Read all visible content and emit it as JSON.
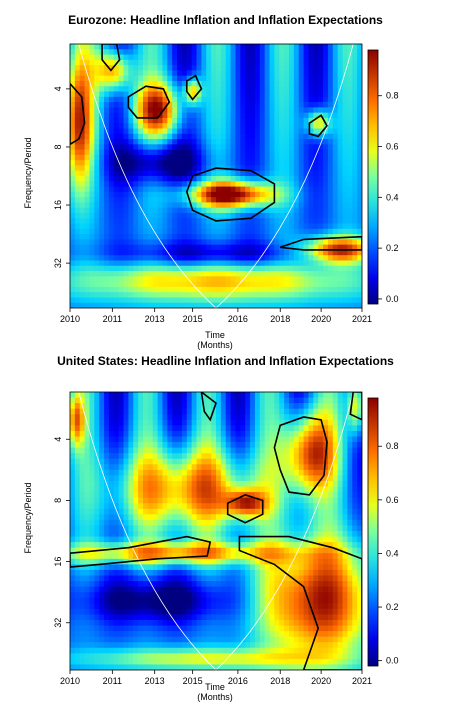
{
  "chart_data": [
    {
      "type": "heatmap",
      "title": "Eurozone: Headline Inflation and Inflation Expectations",
      "ylabel": "Frequency/Period",
      "xlabel": "Time",
      "xlabel_sub": "(Months)",
      "x_ticks": [
        "2010",
        "2011",
        "2013",
        "2015",
        "2016",
        "2018",
        "2020",
        "2021"
      ],
      "y_ticks": [
        "4",
        "8",
        "16",
        "32"
      ],
      "colorbar_ticks": [
        "0.0",
        "0.2",
        "0.4",
        "0.6",
        "0.8"
      ],
      "colorbar_range": [
        0,
        1
      ],
      "significant_regions": [
        {
          "time": "2015–2018",
          "period": "13–19"
        },
        {
          "time": "2019–2021",
          "period": "24–27"
        },
        {
          "time": "2010",
          "period": "3–8"
        },
        {
          "time": "2012–2013",
          "period": "3–5"
        }
      ]
    },
    {
      "type": "heatmap",
      "title": "United States: Headline Inflation and Inflation Expectations",
      "ylabel": "Frequency/Period",
      "xlabel": "Time",
      "xlabel_sub": "(Months)",
      "x_ticks": [
        "2010",
        "2011",
        "2013",
        "2015",
        "2016",
        "2018",
        "2020",
        "2021"
      ],
      "y_ticks": [
        "4",
        "8",
        "16",
        "32"
      ],
      "colorbar_ticks": [
        "0.0",
        "0.2",
        "0.4",
        "0.6",
        "0.8"
      ],
      "colorbar_range": [
        0,
        1
      ],
      "significant_regions": [
        {
          "time": "2010–2016",
          "period": "14–18"
        },
        {
          "time": "2016–2021",
          "period": "14–64"
        },
        {
          "time": "2018–2020",
          "period": "3–10"
        },
        {
          "time": "2016–2018",
          "period": "9–11"
        }
      ]
    }
  ]
}
